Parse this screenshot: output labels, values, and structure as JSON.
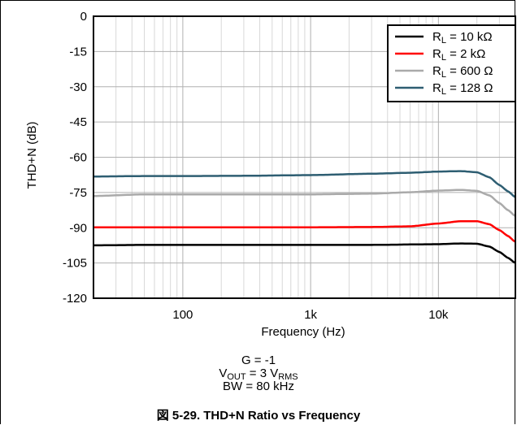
{
  "chart_data": {
    "type": "line",
    "title": "",
    "xlabel": "Frequency (Hz)",
    "ylabel": "THD+N (dB)",
    "xscale": "log",
    "xlim": [
      20,
      40000
    ],
    "ylim": [
      -120,
      0
    ],
    "xticks": [
      100,
      1000,
      10000
    ],
    "xtick_labels": [
      "100",
      "1k",
      "10k"
    ],
    "yticks": [
      0,
      -15,
      -30,
      -45,
      -60,
      -75,
      -90,
      -105,
      -120
    ],
    "ytick_labels": [
      "0",
      "-15",
      "-30",
      "-45",
      "-60",
      "-75",
      "-90",
      "-105",
      "-120"
    ],
    "grid": true,
    "legend_position": "top-right",
    "series": [
      {
        "name": "RL = 10 kΩ",
        "name_main": "R",
        "name_sub": "L",
        "name_rest": " = 10 kΩ",
        "color": "#000000",
        "x": [
          20,
          50,
          100,
          300,
          1000,
          3000,
          10000,
          15000,
          20000,
          25000,
          30000,
          35000,
          40000
        ],
        "y": [
          -97.5,
          -97.3,
          -97.3,
          -97.3,
          -97.3,
          -97.3,
          -97.0,
          -96.7,
          -96.8,
          -98.0,
          -100.3,
          -102.8,
          -105.0
        ]
      },
      {
        "name": "RL = 2 kΩ",
        "name_main": "R",
        "name_sub": "L",
        "name_rest": " = 2 kΩ",
        "color": "#ff0000",
        "x": [
          20,
          50,
          100,
          300,
          1000,
          3000,
          6000,
          10000,
          15000,
          20000,
          25000,
          30000,
          35000,
          40000
        ],
        "y": [
          -89.8,
          -89.8,
          -89.8,
          -89.8,
          -89.8,
          -89.7,
          -89.4,
          -88.2,
          -87.2,
          -87.2,
          -88.5,
          -91.0,
          -93.5,
          -96.0
        ]
      },
      {
        "name": "RL = 600 Ω",
        "name_main": "R",
        "name_sub": "L",
        "name_rest": " = 600 Ω",
        "color": "#aaaaaa",
        "x": [
          20,
          50,
          100,
          300,
          1000,
          3000,
          6000,
          10000,
          15000,
          20000,
          25000,
          30000,
          35000,
          40000
        ],
        "y": [
          -76.5,
          -75.8,
          -75.8,
          -75.8,
          -75.8,
          -75.5,
          -74.9,
          -74.2,
          -73.9,
          -74.3,
          -76.2,
          -79.5,
          -82.5,
          -85.0
        ]
      },
      {
        "name": "RL = 128 Ω",
        "name_main": "R",
        "name_sub": "L",
        "name_rest": " = 128 Ω",
        "color": "#2e5e72",
        "x": [
          20,
          50,
          100,
          300,
          1000,
          3000,
          6000,
          10000,
          15000,
          20000,
          25000,
          30000,
          35000,
          40000
        ],
        "y": [
          -68.2,
          -68.0,
          -68.0,
          -67.9,
          -67.6,
          -67.0,
          -66.6,
          -66.1,
          -65.9,
          -66.4,
          -68.5,
          -71.8,
          -74.5,
          -77.0
        ]
      }
    ]
  },
  "notes": {
    "gain": "G = -1",
    "vout_main": "V",
    "vout_sub": "OUT",
    "vout_mid": " = 3 V",
    "vout_sub2": "RMS",
    "bw": "BW = 80 kHz"
  },
  "caption": "図 5-29. THD+N Ratio vs Frequency"
}
